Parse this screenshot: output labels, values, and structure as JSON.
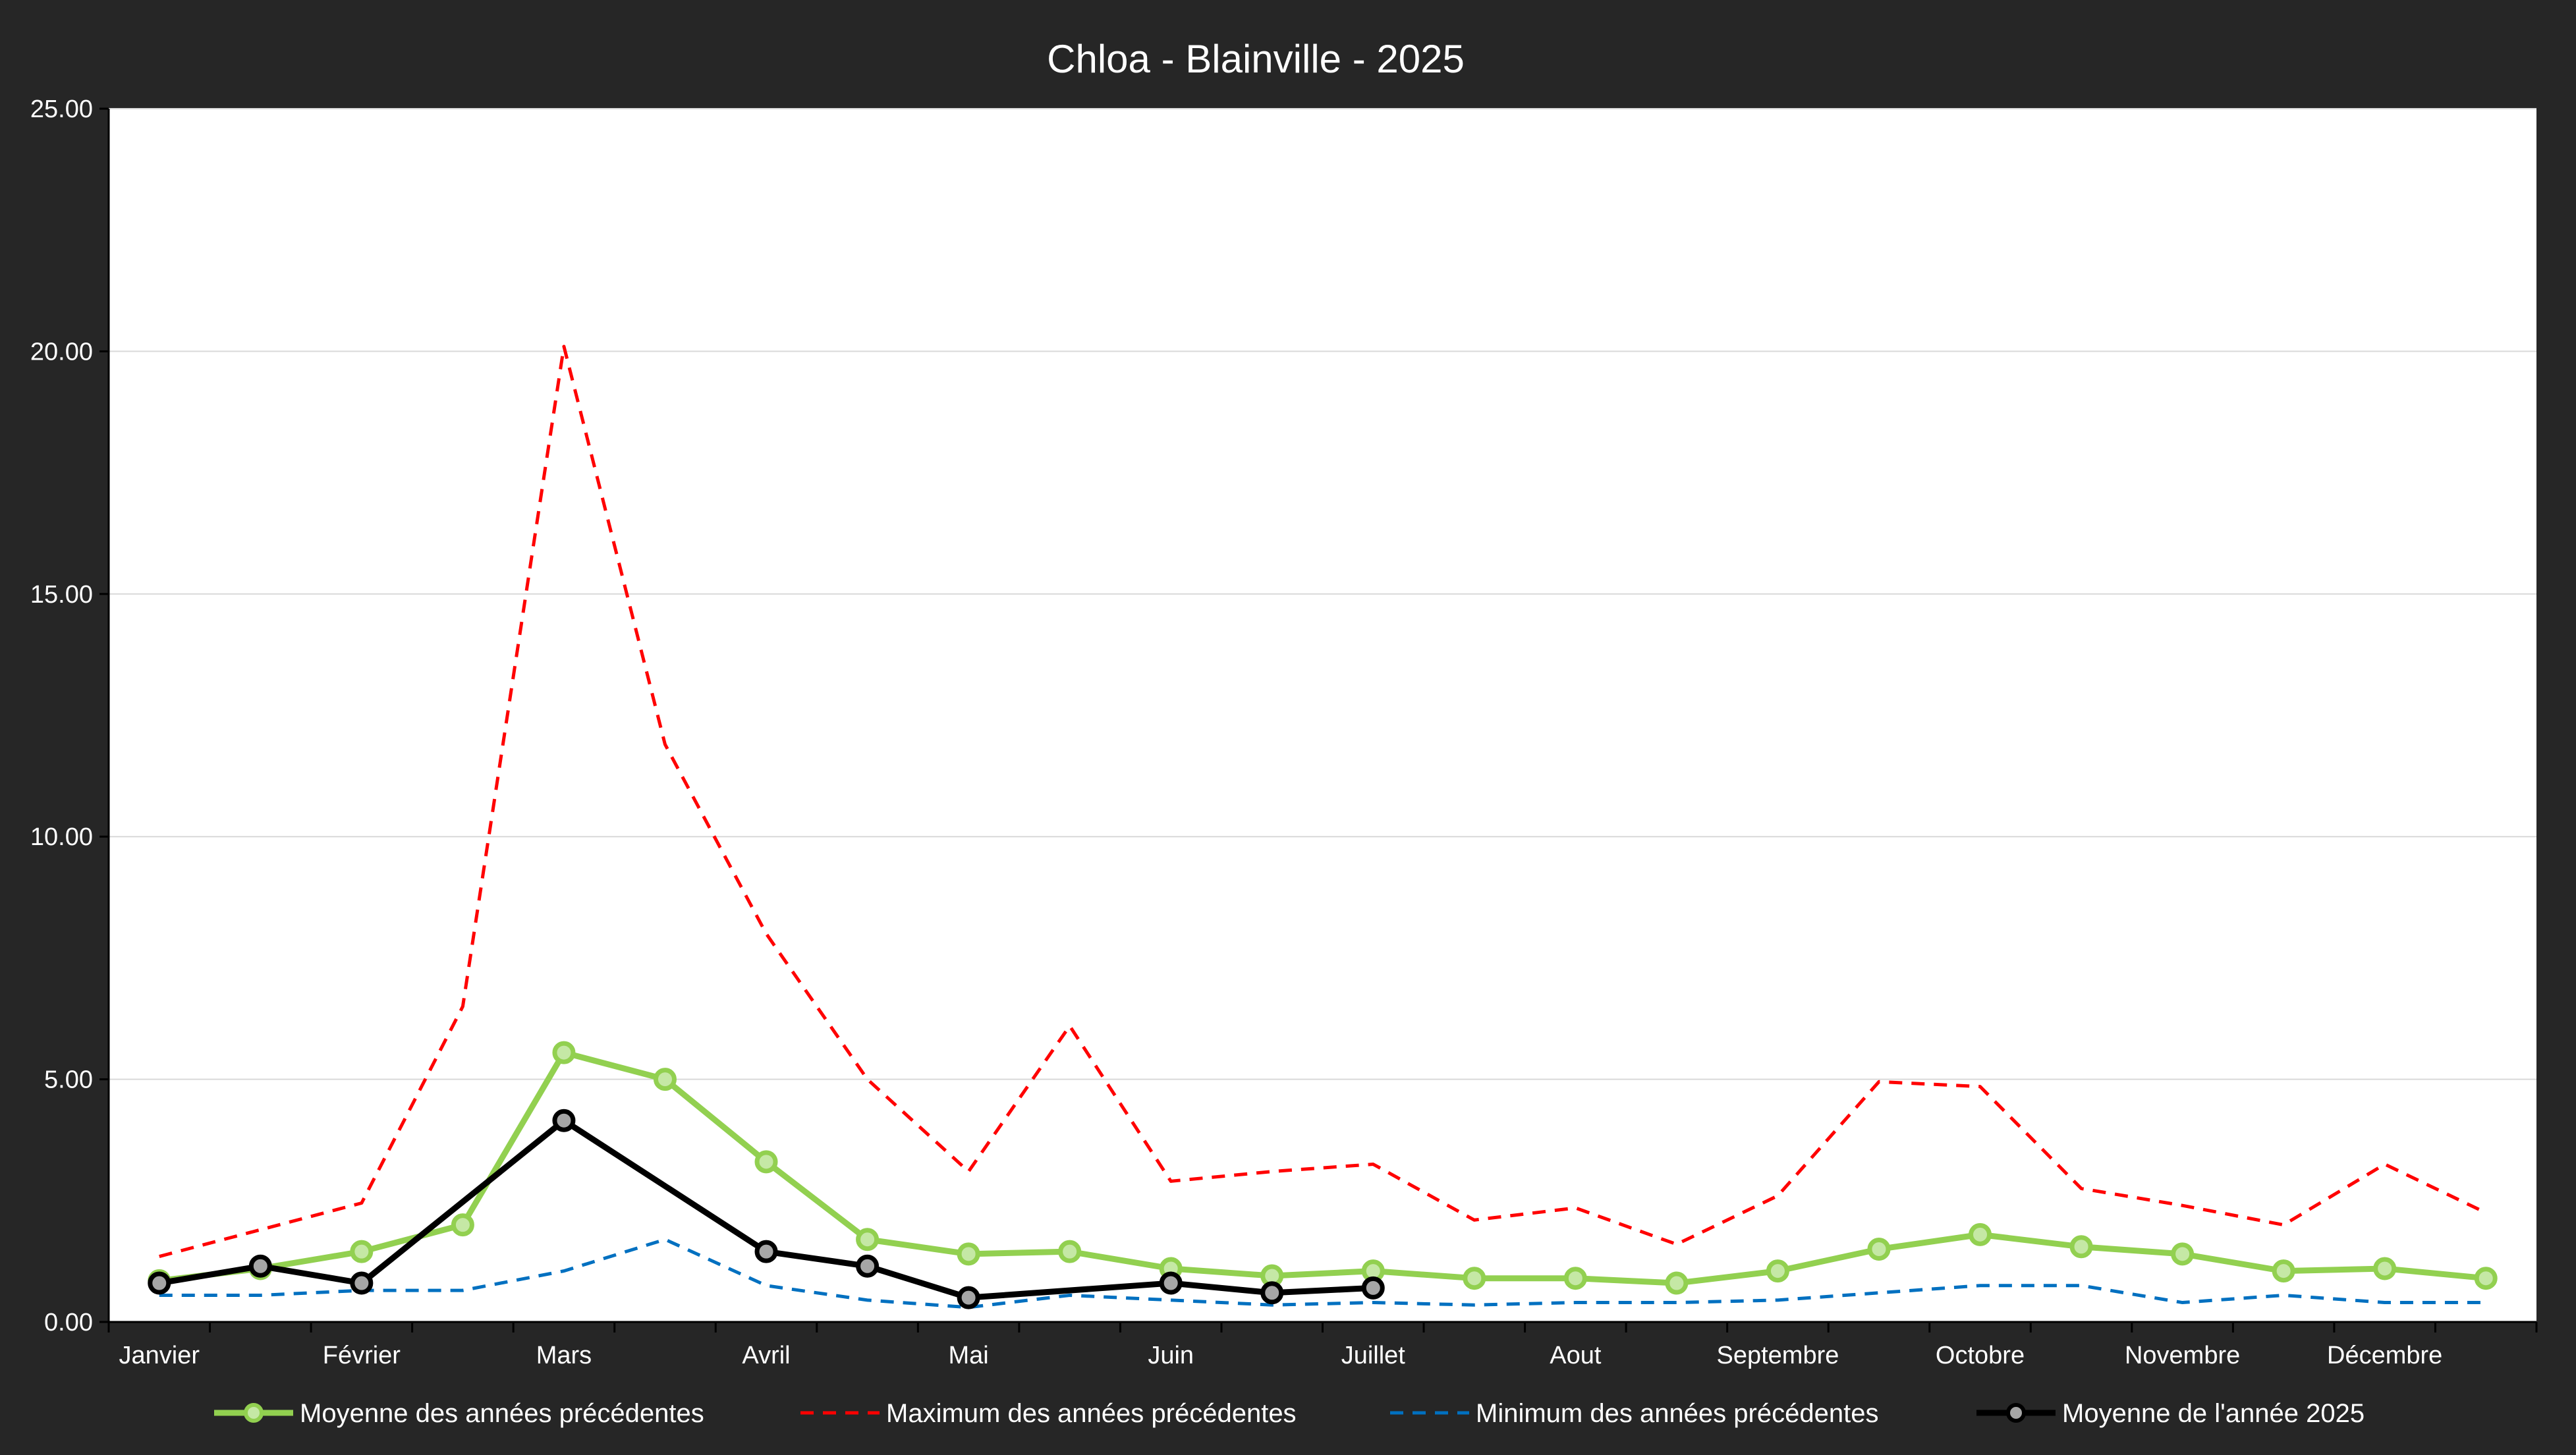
{
  "chart_data": {
    "type": "line",
    "title": "Chloa  - Blainville - 2025",
    "xlabel": "",
    "ylabel": "",
    "ylim": [
      0,
      25
    ],
    "yticks": [
      "0.00",
      "5.00",
      "10.00",
      "15.00",
      "20.00",
      "25.00"
    ],
    "x_labels": [
      "Janvier",
      "Février",
      "Mars",
      "Avril",
      "Mai",
      "Juin",
      "Juillet",
      "Aout",
      "Septembre",
      "Octobre",
      "Novembre",
      "Décembre"
    ],
    "grid": true,
    "legend_position": "bottom",
    "series": [
      {
        "name": "Moyenne des années précédentes",
        "color": "#92d050",
        "style": "solid",
        "markers": true,
        "values": [
          0.85,
          1.1,
          1.45,
          2.0,
          5.55,
          5.0,
          3.3,
          1.7,
          1.4,
          1.45,
          1.1,
          0.95,
          1.05,
          0.9,
          0.9,
          0.8,
          1.05,
          1.5,
          1.8,
          1.55,
          1.4,
          1.05,
          1.1,
          0.9
        ]
      },
      {
        "name": "Maximum des années précédentes",
        "color": "#ff0000",
        "style": "dashed",
        "markers": false,
        "values": [
          1.35,
          1.9,
          2.45,
          6.5,
          20.1,
          11.9,
          8.0,
          5.0,
          3.1,
          6.1,
          2.9,
          3.1,
          3.25,
          2.1,
          2.35,
          1.6,
          2.6,
          4.95,
          4.85,
          2.75,
          2.4,
          2.0,
          3.25,
          2.25
        ]
      },
      {
        "name": "Minimum des années précédentes",
        "color": "#0070c0",
        "style": "dashed",
        "markers": false,
        "values": [
          0.55,
          0.55,
          0.65,
          0.65,
          1.05,
          1.7,
          0.75,
          0.45,
          0.3,
          0.55,
          0.45,
          0.35,
          0.4,
          0.35,
          0.4,
          0.4,
          0.45,
          0.6,
          0.75,
          0.75,
          0.4,
          0.55,
          0.4,
          0.4
        ]
      },
      {
        "name": "Moyenne de l'année 2025",
        "color": "#000000",
        "style": "solid",
        "markers": true,
        "values": [
          0.8,
          1.15,
          0.8,
          null,
          4.15,
          null,
          1.45,
          1.15,
          0.5,
          null,
          0.8,
          0.6,
          0.7,
          null,
          null,
          null,
          null,
          null,
          null,
          null,
          null,
          null,
          null,
          null
        ]
      }
    ]
  }
}
